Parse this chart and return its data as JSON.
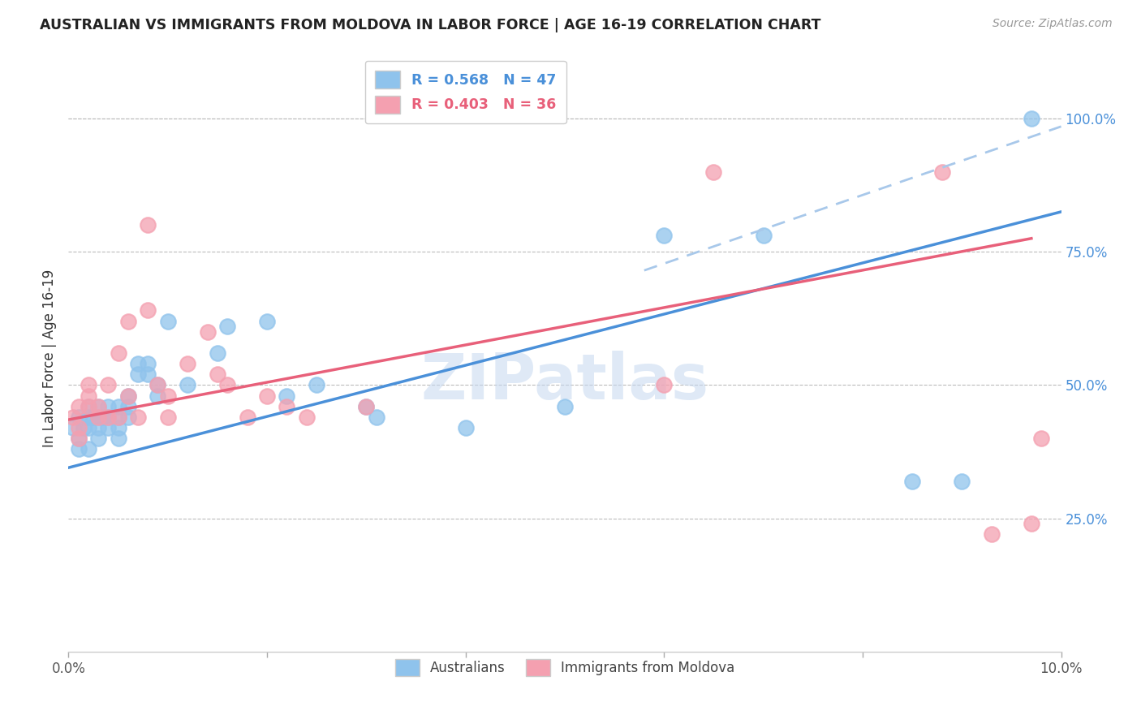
{
  "title": "AUSTRALIAN VS IMMIGRANTS FROM MOLDOVA IN LABOR FORCE | AGE 16-19 CORRELATION CHART",
  "source": "Source: ZipAtlas.com",
  "ylabel": "In Labor Force | Age 16-19",
  "right_ytick_labels": [
    "100.0%",
    "75.0%",
    "50.0%",
    "25.0%"
  ],
  "right_ytick_values": [
    1.0,
    0.75,
    0.5,
    0.25
  ],
  "xlim": [
    0.0,
    0.1
  ],
  "ylim": [
    0.0,
    1.1
  ],
  "xtick_values": [
    0.0,
    0.02,
    0.04,
    0.06,
    0.08,
    0.1
  ],
  "xtick_labels": [
    "0.0%",
    "",
    "",
    "",
    "",
    "10.0%"
  ],
  "legend_label1": "Australians",
  "legend_label2": "Immigrants from Moldova",
  "color_blue": "#8FC3EC",
  "color_pink": "#F4A0B0",
  "color_blue_dark": "#4A90D9",
  "color_pink_dark": "#E8607A",
  "color_dashed": "#A8C8EA",
  "color_title": "#222222",
  "color_right_labels": "#4A90D9",
  "color_source": "#999999",
  "color_grid": "#BBBBBB",
  "blue_line_x0": 0.0,
  "blue_line_y0": 0.345,
  "blue_line_x1": 0.1,
  "blue_line_y1": 0.825,
  "pink_line_x0": 0.0,
  "pink_line_y0": 0.435,
  "pink_line_x1": 0.097,
  "pink_line_y1": 0.775,
  "dashed_line_x0": 0.058,
  "dashed_line_y0": 0.715,
  "dashed_line_x1": 0.1,
  "dashed_line_y1": 0.985,
  "blue_x": [
    0.0005,
    0.001,
    0.001,
    0.001,
    0.0015,
    0.002,
    0.002,
    0.002,
    0.002,
    0.0025,
    0.003,
    0.003,
    0.003,
    0.003,
    0.0035,
    0.004,
    0.004,
    0.004,
    0.005,
    0.005,
    0.005,
    0.005,
    0.006,
    0.006,
    0.006,
    0.007,
    0.007,
    0.008,
    0.008,
    0.009,
    0.009,
    0.01,
    0.012,
    0.015,
    0.016,
    0.02,
    0.022,
    0.025,
    0.03,
    0.031,
    0.04,
    0.05,
    0.06,
    0.07,
    0.085,
    0.09,
    0.097
  ],
  "blue_y": [
    0.42,
    0.44,
    0.4,
    0.38,
    0.42,
    0.42,
    0.44,
    0.46,
    0.38,
    0.44,
    0.44,
    0.46,
    0.42,
    0.4,
    0.44,
    0.46,
    0.44,
    0.42,
    0.46,
    0.44,
    0.42,
    0.4,
    0.48,
    0.44,
    0.46,
    0.52,
    0.54,
    0.52,
    0.54,
    0.5,
    0.48,
    0.62,
    0.5,
    0.56,
    0.61,
    0.62,
    0.48,
    0.5,
    0.46,
    0.44,
    0.42,
    0.46,
    0.78,
    0.78,
    0.32,
    0.32,
    1.0
  ],
  "pink_x": [
    0.0005,
    0.001,
    0.001,
    0.001,
    0.002,
    0.002,
    0.002,
    0.003,
    0.003,
    0.004,
    0.004,
    0.005,
    0.005,
    0.006,
    0.006,
    0.007,
    0.008,
    0.008,
    0.009,
    0.01,
    0.01,
    0.012,
    0.014,
    0.015,
    0.016,
    0.018,
    0.02,
    0.022,
    0.024,
    0.03,
    0.06,
    0.065,
    0.088,
    0.093,
    0.097,
    0.098
  ],
  "pink_y": [
    0.44,
    0.46,
    0.42,
    0.4,
    0.48,
    0.5,
    0.46,
    0.44,
    0.46,
    0.5,
    0.44,
    0.56,
    0.44,
    0.62,
    0.48,
    0.44,
    0.8,
    0.64,
    0.5,
    0.48,
    0.44,
    0.54,
    0.6,
    0.52,
    0.5,
    0.44,
    0.48,
    0.46,
    0.44,
    0.46,
    0.5,
    0.9,
    0.9,
    0.22,
    0.24,
    0.4
  ],
  "watermark_text": "ZIPatlas",
  "figsize": [
    14.06,
    8.92
  ],
  "dpi": 100
}
